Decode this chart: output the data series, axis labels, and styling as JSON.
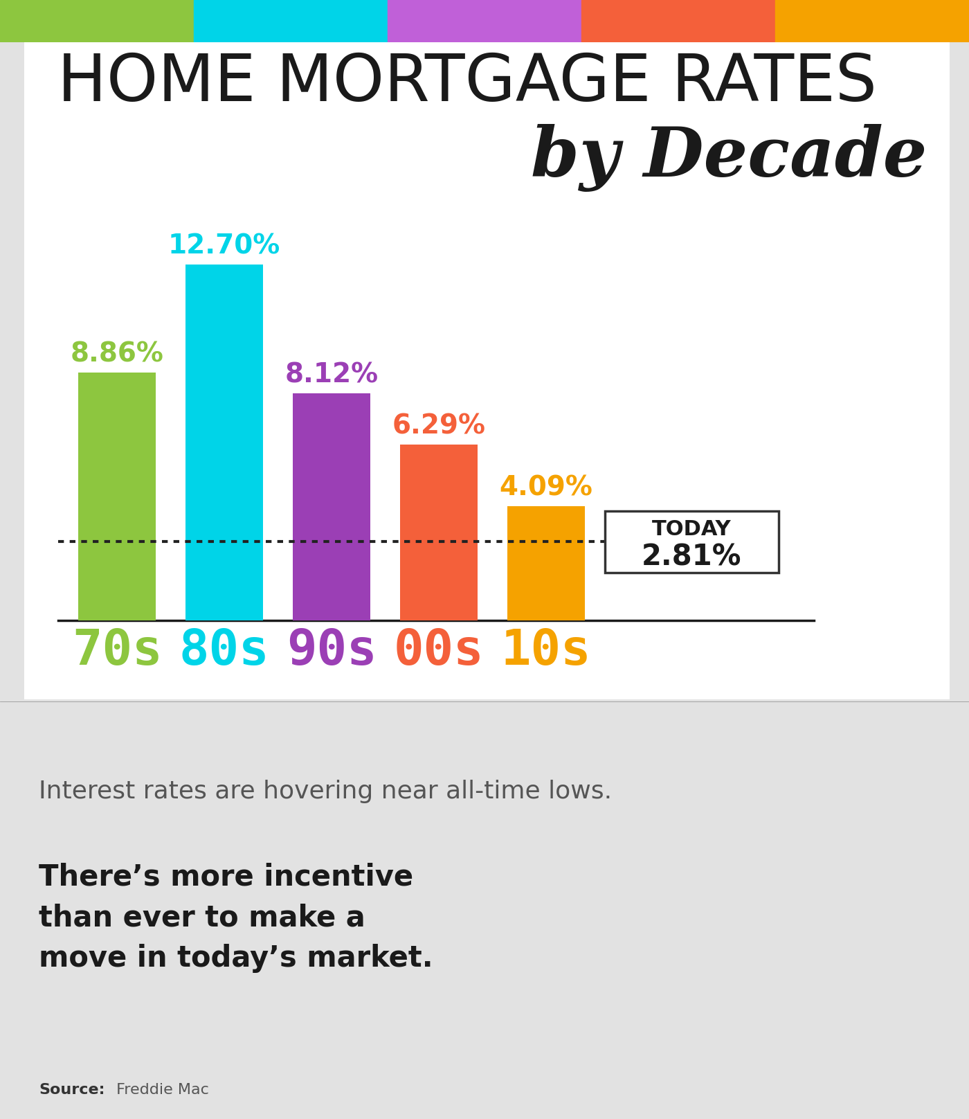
{
  "title_line1": "HOME MORTGAGE RATES",
  "title_line2": "by Decade",
  "categories": [
    "70s",
    "80s",
    "90s",
    "00s",
    "10s"
  ],
  "values": [
    8.86,
    12.7,
    8.12,
    6.29,
    4.09
  ],
  "today_value": "2.81%",
  "bar_colors": [
    "#8dc63f",
    "#00d4e8",
    "#9b3fb5",
    "#f4603a",
    "#f5a200"
  ],
  "label_colors": [
    "#8dc63f",
    "#00d4e8",
    "#9b3fb5",
    "#f4603a",
    "#f5a200"
  ],
  "tick_label_colors": [
    "#8dc63f",
    "#00d4e8",
    "#9b3fb5",
    "#f4603a",
    "#f5a200"
  ],
  "background_color": "#e2e2e2",
  "chart_bg": "#ffffff",
  "dotted_line_y": 2.81,
  "subtitle_text1": "Interest rates are hovering near all-time lows.",
  "subtitle_text2": "There’s more incentive\nthan ever to make a\nmove in today’s market.",
  "source_bold": "Source:",
  "source_normal": " Freddie Mac",
  "top_strip_colors": [
    "#8dc63f",
    "#00d4e8",
    "#c060d8",
    "#f4603a",
    "#f5a200"
  ],
  "ylim": [
    0,
    15.0
  ]
}
